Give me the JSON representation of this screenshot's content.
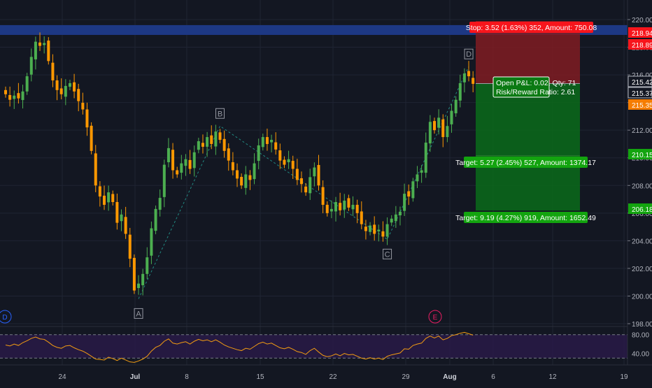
{
  "colors": {
    "background": "#131722",
    "grid": "#1f2433",
    "up": "#26a69a",
    "down": "#ef6c00",
    "candle_up": "#4caf50",
    "candle_down": "#ff9800",
    "axis_text": "#b2b5be",
    "resistance_band": "#1e3a8a",
    "stop_zone": "#801c22",
    "target_zone": "#0b6b1a",
    "stop_label": "#f7151c",
    "target_label": "#13a40f",
    "rsi_line": "#f39c12",
    "rsi_band": "#2a1a4a",
    "current_price_tag": "#f57c00",
    "pivot_label": "#9598a1"
  },
  "price_axis": {
    "ticks": [
      "220.00",
      "218.00",
      "216.00",
      "214.00",
      "212.00",
      "210.00",
      "208.00",
      "206.00",
      "204.00",
      "202.00",
      "200.00",
      "198.00"
    ],
    "tags": [
      {
        "label": "218.94",
        "kind": "stop"
      },
      {
        "label": "218.89",
        "kind": "stop"
      },
      {
        "label": "215.42",
        "kind": "neutral"
      },
      {
        "label": "215.37",
        "kind": "neutral"
      },
      {
        "label": "215.35",
        "kind": "current"
      },
      {
        "label": "210.15",
        "kind": "target"
      },
      {
        "label": "206.18",
        "kind": "target"
      }
    ]
  },
  "time_axis": {
    "labels": [
      "24",
      "Jul",
      "8",
      "15",
      "22",
      "29",
      "Aug",
      "6",
      "12",
      "19"
    ]
  },
  "trade_labels": {
    "stop": "Stop: 3.52 (1.63%) 352, Amount: 750.08",
    "open_pnl": "Open P&L: 0.02, Qty: 71",
    "risk_reward": "Risk/Reward Ratio: 2.61",
    "target1": "Target: 5.27 (2.45%) 527, Amount: 1374.17",
    "target2": "Target: 9.19 (4.27%) 919, Amount: 1652.49"
  },
  "pivots": [
    {
      "label": "A",
      "price": 199.8
    },
    {
      "label": "B",
      "price": 212.3
    },
    {
      "label": "C",
      "price": 204.1
    },
    {
      "label": "D",
      "price": 216.6
    }
  ],
  "markers": [
    {
      "label": "D",
      "color": "#2962ff"
    },
    {
      "label": "E",
      "color": "#e91e63"
    }
  ],
  "rsi": {
    "ticks": [
      "80.00",
      "40.00"
    ]
  },
  "chart_data": {
    "type": "candlestick",
    "ylim": [
      198,
      220.5
    ],
    "resistance_band": [
      218.89,
      219.6
    ],
    "position": {
      "entry": 215.37,
      "stop": 218.94,
      "target1": 210.15,
      "target2": 206.18
    },
    "closes": [
      214.6,
      214.2,
      214.5,
      214.3,
      214.8,
      215.9,
      217.3,
      218.4,
      218.1,
      218.3,
      217.0,
      215.6,
      214.9,
      214.6,
      215.2,
      215.4,
      214.8,
      214.1,
      213.5,
      212.2,
      210.5,
      208.0,
      207.2,
      206.6,
      207.5,
      206.8,
      205.3,
      205.9,
      204.5,
      202.7,
      200.4,
      200.9,
      201.6,
      202.8,
      204.9,
      206.3,
      207.1,
      209.5,
      210.7,
      209.1,
      208.8,
      209.6,
      209.9,
      209.2,
      210.4,
      211.2,
      210.8,
      211.5,
      211.0,
      211.9,
      211.3,
      210.5,
      209.8,
      209.1,
      208.5,
      208.0,
      208.8,
      208.4,
      209.6,
      210.9,
      211.5,
      211.0,
      211.3,
      210.6,
      209.8,
      209.5,
      209.9,
      209.2,
      208.4,
      208.1,
      207.5,
      208.6,
      209.3,
      208.0,
      206.6,
      206.0,
      206.3,
      206.8,
      206.2,
      206.9,
      206.4,
      206.6,
      206.0,
      205.2,
      204.7,
      205.1,
      204.5,
      204.8,
      204.3,
      205.2,
      205.6,
      205.9,
      206.1,
      207.4,
      207.2,
      208.3,
      208.8,
      209.1,
      211.1,
      212.6,
      212.0,
      212.9,
      211.5,
      212.3,
      213.4,
      214.2,
      215.4,
      216.1,
      215.9,
      215.35
    ],
    "rsi": {
      "overbought": 80,
      "oversold": 30,
      "values": [
        58,
        56,
        60,
        57,
        63,
        67,
        72,
        75,
        71,
        70,
        64,
        57,
        53,
        51,
        56,
        57,
        52,
        48,
        45,
        40,
        34,
        28,
        27,
        26,
        32,
        29,
        25,
        30,
        26,
        22,
        21,
        24,
        28,
        34,
        45,
        53,
        57,
        66,
        71,
        62,
        60,
        63,
        65,
        60,
        66,
        70,
        67,
        69,
        65,
        69,
        64,
        58,
        54,
        51,
        48,
        46,
        51,
        49,
        55,
        61,
        64,
        60,
        62,
        57,
        52,
        50,
        53,
        49,
        44,
        42,
        38,
        46,
        51,
        43,
        36,
        33,
        35,
        39,
        35,
        40,
        37,
        38,
        34,
        30,
        28,
        31,
        28,
        30,
        27,
        34,
        37,
        39,
        41,
        50,
        49,
        57,
        60,
        62,
        72,
        77,
        73,
        77,
        69,
        72,
        78,
        80,
        83,
        85,
        82,
        79
      ]
    }
  }
}
